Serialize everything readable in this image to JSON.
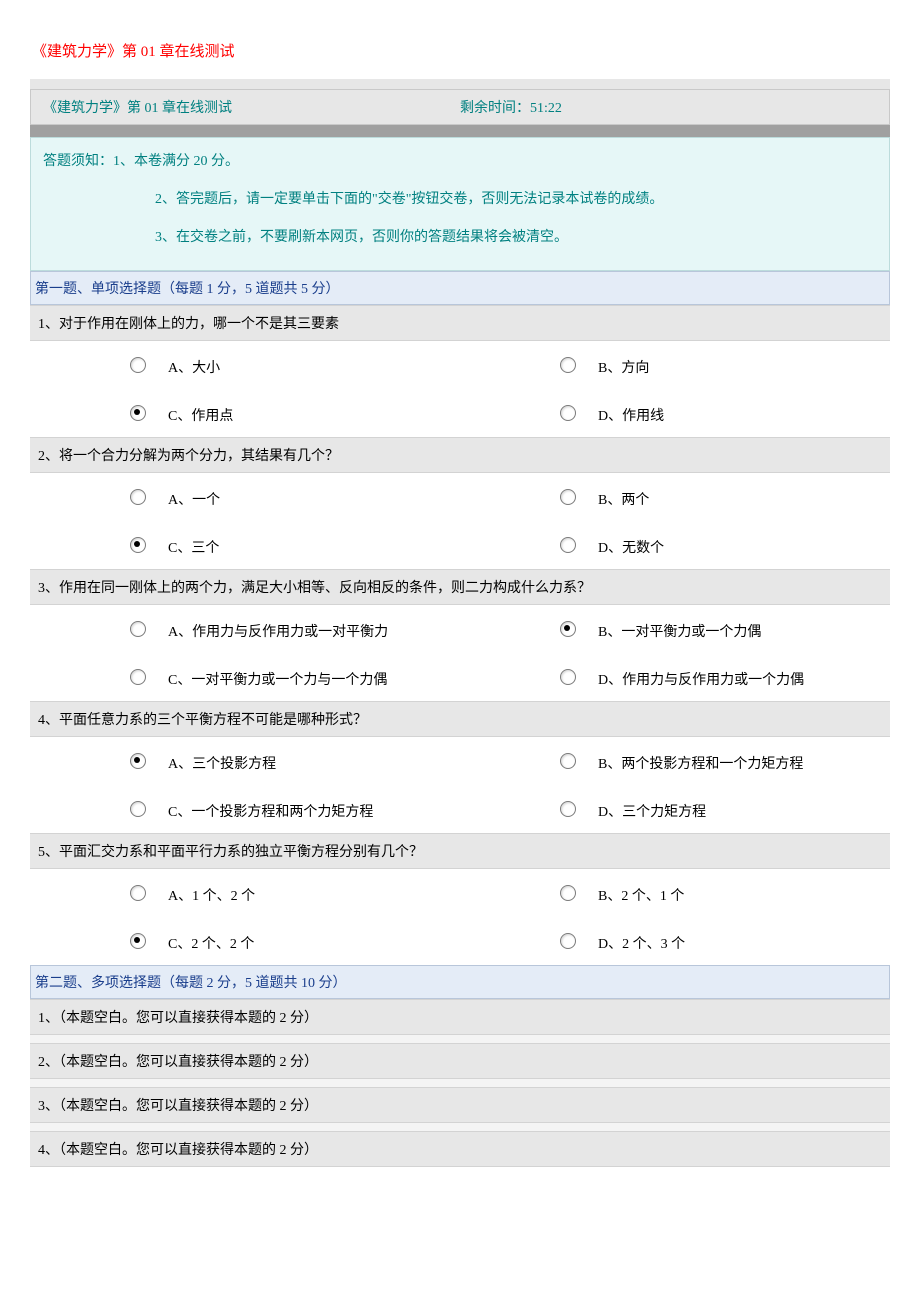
{
  "page_title": "《建筑力学》第 01 章在线测试",
  "header": {
    "title": "《建筑力学》第 01 章在线测试",
    "time_label": "剩余时间：51:22"
  },
  "notice": {
    "line1": "答题须知：1、本卷满分 20 分。",
    "line2": "2、答完题后，请一定要单击下面的\"交卷\"按钮交卷，否则无法记录本试卷的成绩。",
    "line3": "3、在交卷之前，不要刷新本网页，否则你的答题结果将会被清空。"
  },
  "section1": {
    "header": "第一题、单项选择题（每题 1 分，5 道题共 5 分）",
    "q1": {
      "text": "1、对于作用在刚体上的力，哪一个不是其三要素",
      "a": "A、大小",
      "b": "B、方向",
      "c": "C、作用点",
      "d": "D、作用线",
      "selected": "c"
    },
    "q2": {
      "text": "2、将一个合力分解为两个分力，其结果有几个？",
      "a": "A、一个",
      "b": "B、两个",
      "c": "C、三个",
      "d": "D、无数个",
      "selected": "c"
    },
    "q3": {
      "text": "3、作用在同一刚体上的两个力，满足大小相等、反向相反的条件，则二力构成什么力系？",
      "a": "A、作用力与反作用力或一对平衡力",
      "b": "B、一对平衡力或一个力偶",
      "c": "C、一对平衡力或一个力与一个力偶",
      "d": "D、作用力与反作用力或一个力偶",
      "selected": "b"
    },
    "q4": {
      "text": "4、平面任意力系的三个平衡方程不可能是哪种形式？",
      "a": "A、三个投影方程",
      "b": "B、两个投影方程和一个力矩方程",
      "c": "C、一个投影方程和两个力矩方程",
      "d": "D、三个力矩方程",
      "selected": "a"
    },
    "q5": {
      "text": "5、平面汇交力系和平面平行力系的独立平衡方程分别有几个？",
      "a": "A、1 个、2 个",
      "b": "B、2 个、1 个",
      "c": "C、2 个、2 个",
      "d": "D、2 个、3 个",
      "selected": "c"
    }
  },
  "section2": {
    "header": "第二题、多项选择题（每题 2 分，5 道题共 10 分）",
    "q1": "1、（本题空白。您可以直接获得本题的 2 分）",
    "q2": "2、（本题空白。您可以直接获得本题的 2 分）",
    "q3": "3、（本题空白。您可以直接获得本题的 2 分）",
    "q4": "4、（本题空白。您可以直接获得本题的 2 分）"
  },
  "colors": {
    "title": "#ff0000",
    "teal": "#008080",
    "section_bg": "#e4ecf7",
    "section_text": "#1a3e8c",
    "grey_bg": "#e7e7e7",
    "notice_bg": "#e6f7f7"
  }
}
